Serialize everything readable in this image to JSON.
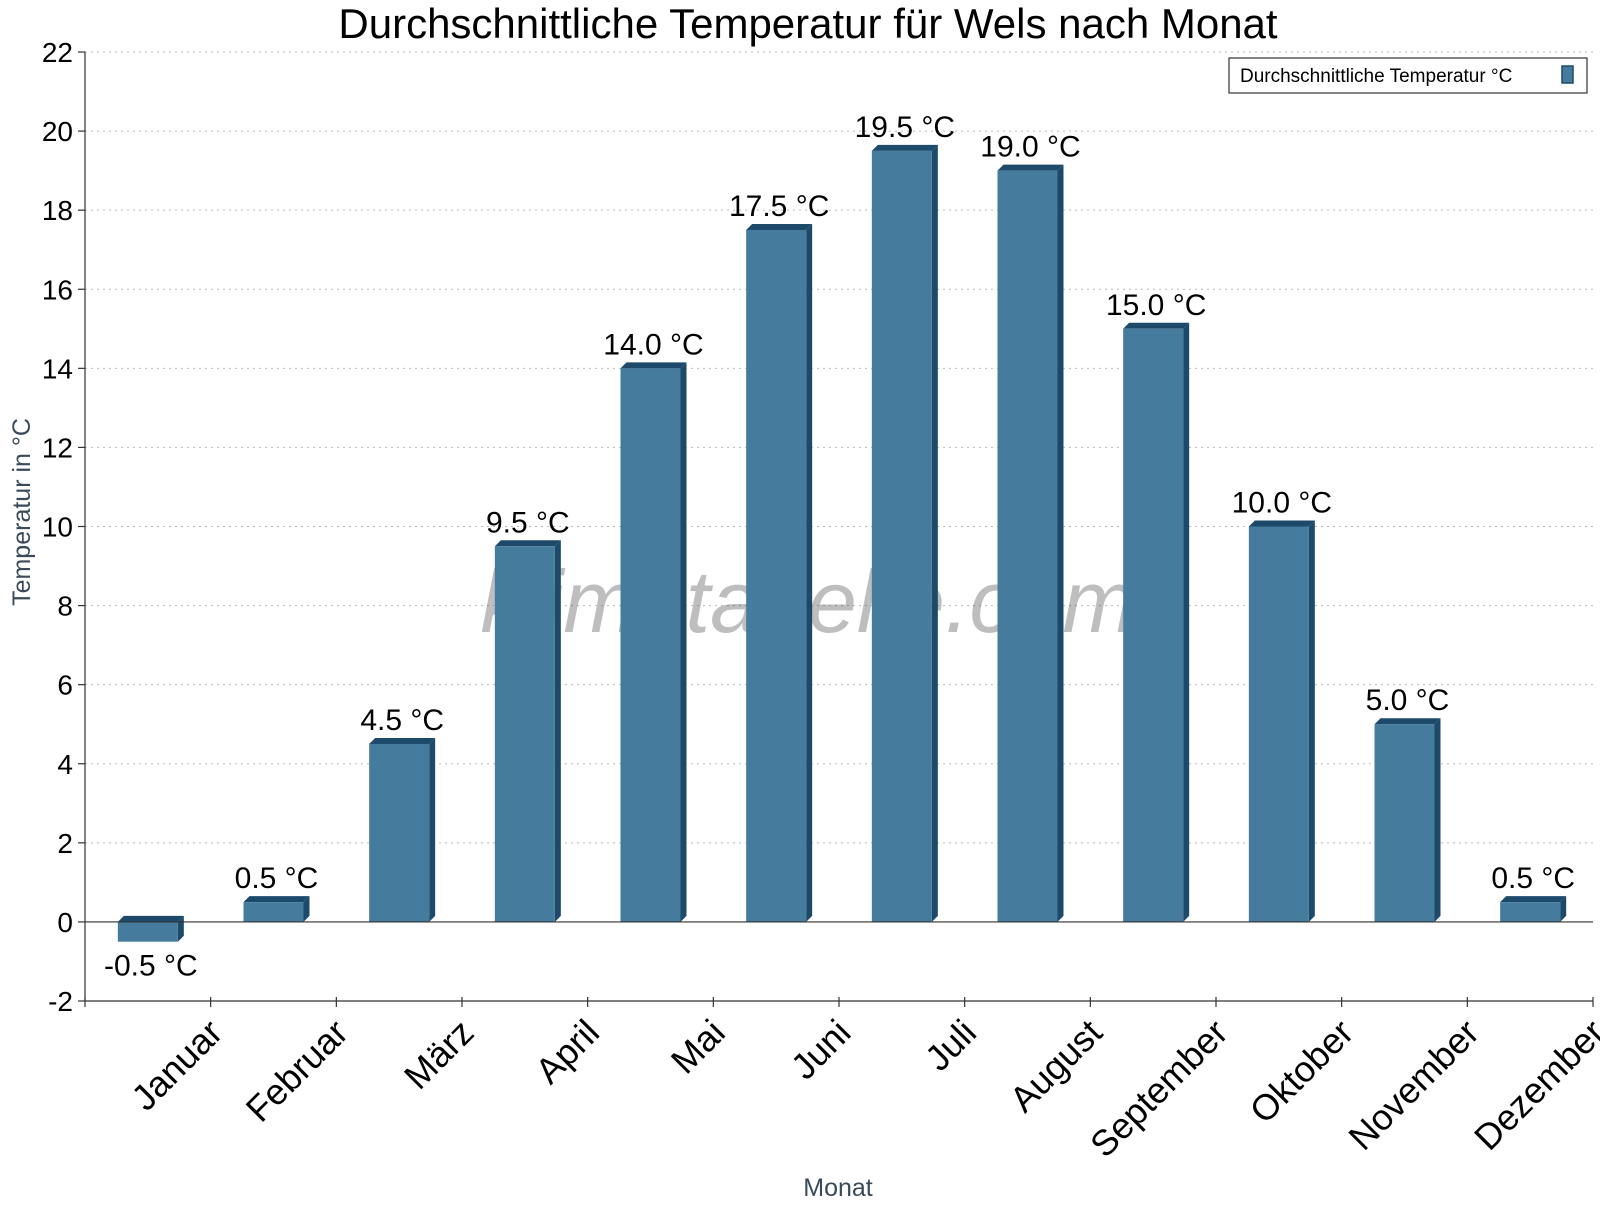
{
  "chart_data": {
    "type": "bar",
    "title": "Durchschnittliche Temperatur für Wels nach Monat",
    "xlabel": "Monat",
    "ylabel": "Temperatur in °C",
    "categories": [
      "Januar",
      "Februar",
      "März",
      "April",
      "Mai",
      "Juni",
      "Juli",
      "August",
      "September",
      "Oktober",
      "November",
      "Dezember"
    ],
    "series": [
      {
        "name": "Durchschnittliche Temperatur °C",
        "values": [
          -0.5,
          0.5,
          4.5,
          9.5,
          14.0,
          17.5,
          19.5,
          19.0,
          15.0,
          10.0,
          5.0,
          0.5
        ],
        "labels": [
          "-0.5 °C",
          "0.5 °C",
          "4.5 °C",
          "9.5 °C",
          "14.0 °C",
          "17.5 °C",
          "19.5 °C",
          "19.0 °C",
          "15.0 °C",
          "10.0 °C",
          "5.0 °C",
          "0.5 °C"
        ]
      }
    ],
    "ylim": [
      -2,
      22
    ],
    "yticks": [
      -2,
      0,
      2,
      4,
      6,
      8,
      10,
      12,
      14,
      16,
      18,
      20,
      22
    ],
    "grid": true,
    "legend_position": "top-right",
    "colors": {
      "bar": "#457b9d",
      "bar_dark": "#1d4a6b",
      "grid": "#bbbbbb",
      "axis": "#333333"
    }
  },
  "watermark": "klimatabelle.com"
}
